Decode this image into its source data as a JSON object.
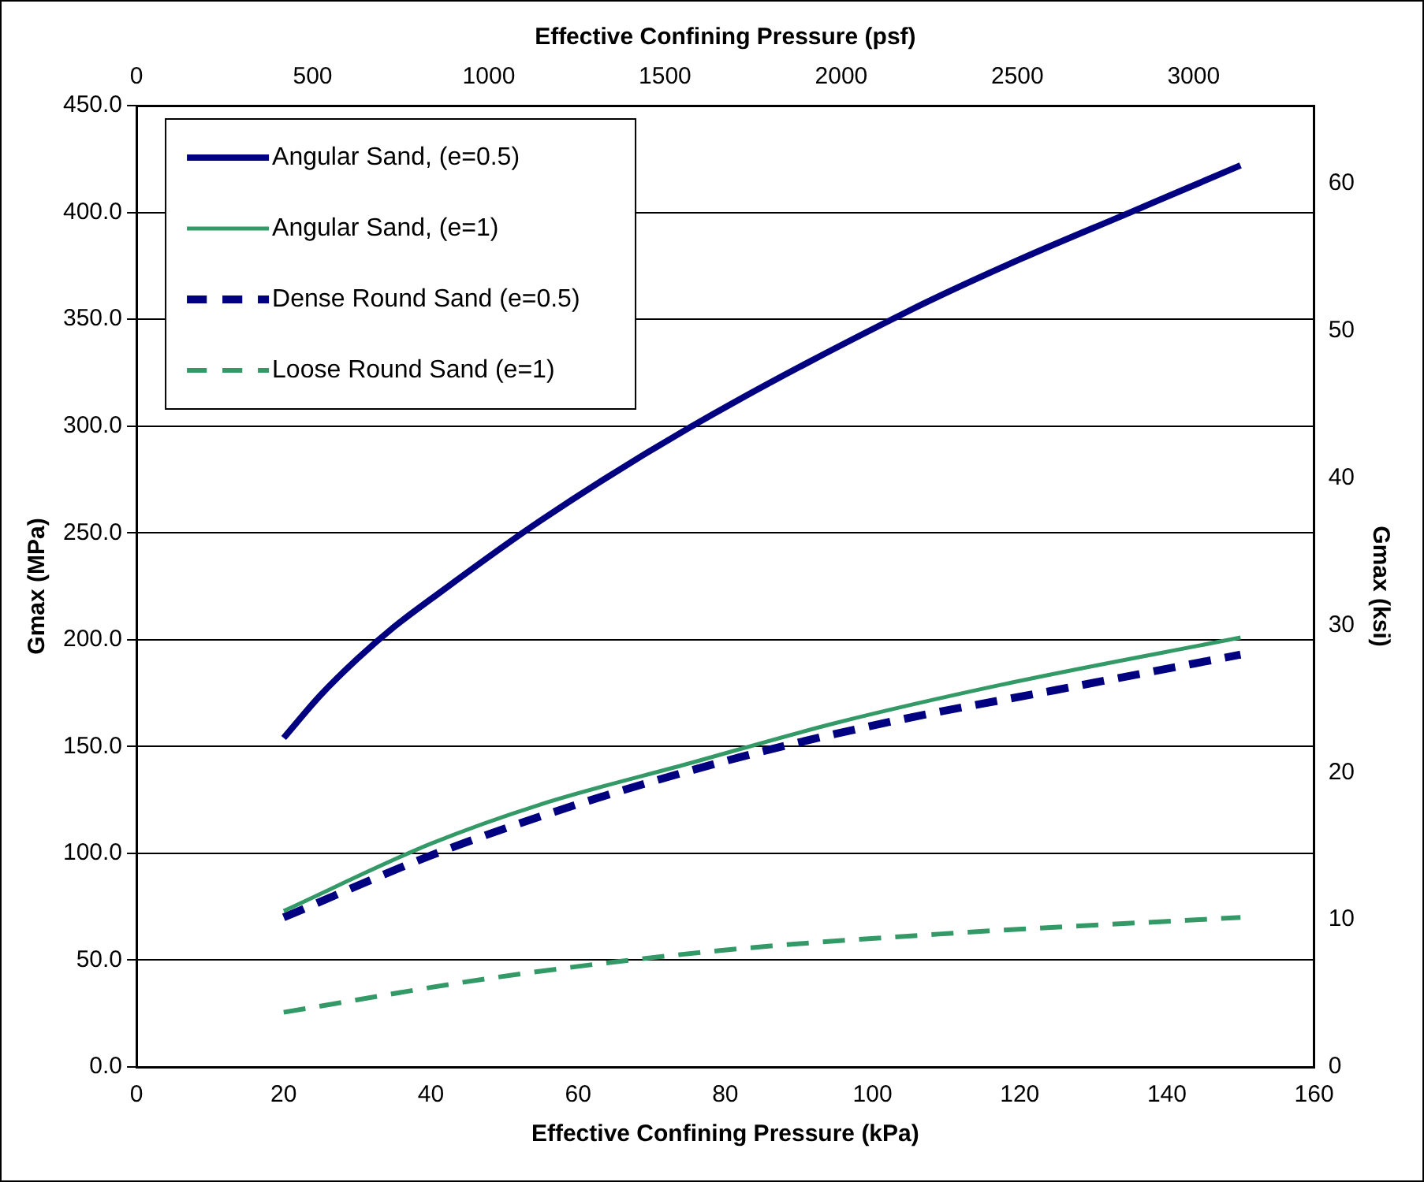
{
  "chart_data": {
    "type": "line",
    "xlabel": "Effective Confining Pressure (kPa)",
    "x2label": "Effective Confining Pressure (psf)",
    "ylabel": "Gmax (MPa)",
    "y2label": "Gmax (ksi)",
    "xlim": [
      0,
      160
    ],
    "xticks": [
      0,
      20,
      40,
      60,
      80,
      100,
      120,
      140,
      160
    ],
    "x2lim": [
      0,
      3342
    ],
    "x2ticks": [
      0,
      500,
      1000,
      1500,
      2000,
      2500,
      3000
    ],
    "ylim": [
      0,
      450
    ],
    "yticks": [
      {
        "value": 0,
        "label": "0.0"
      },
      {
        "value": 50,
        "label": "50.0"
      },
      {
        "value": 100,
        "label": "100.0"
      },
      {
        "value": 150,
        "label": "150.0"
      },
      {
        "value": 200,
        "label": "200.0"
      },
      {
        "value": 250,
        "label": "250.0"
      },
      {
        "value": 300,
        "label": "300.0"
      },
      {
        "value": 350,
        "label": "350.0"
      },
      {
        "value": 400,
        "label": "400.0"
      },
      {
        "value": 450,
        "label": "450.0"
      }
    ],
    "y2lim": [
      0,
      65.3
    ],
    "y2ticks": [
      0,
      10,
      20,
      30,
      40,
      50,
      60
    ],
    "grid": "y",
    "legend": "top left",
    "marker": "none",
    "series": [
      {
        "name": "Angular Sand, (e=0.5)",
        "color": "#000080",
        "line_style": "solid",
        "x": [
          20,
          25,
          30,
          35,
          40,
          55,
          75,
          105,
          120,
          135,
          150
        ],
        "values": [
          154,
          174,
          191,
          206,
          219,
          256,
          299,
          354,
          378,
          400,
          422
        ]
      },
      {
        "name": "Angular Sand, (e=1)",
        "color": "#339966",
        "line_style": "solid",
        "x": [
          20,
          40,
          55,
          75,
          95,
          119,
          150
        ],
        "values": [
          73,
          104.5,
          123,
          142,
          161,
          180,
          201
        ]
      },
      {
        "name": "Dense Round Sand (e=0.5)",
        "color": "#000080",
        "line_style": "dashed",
        "x": [
          20,
          40,
          60,
          82,
          103,
          125,
          150
        ],
        "values": [
          70,
          99,
          123,
          145,
          162,
          176.5,
          193
        ]
      },
      {
        "name": "Loose Round Sand (e=1)",
        "color": "#339966",
        "line_style": "dashed",
        "x": [
          20,
          49,
          79,
          109,
          150
        ],
        "values": [
          25.6,
          42,
          54.4,
          62.2,
          70
        ]
      }
    ]
  }
}
